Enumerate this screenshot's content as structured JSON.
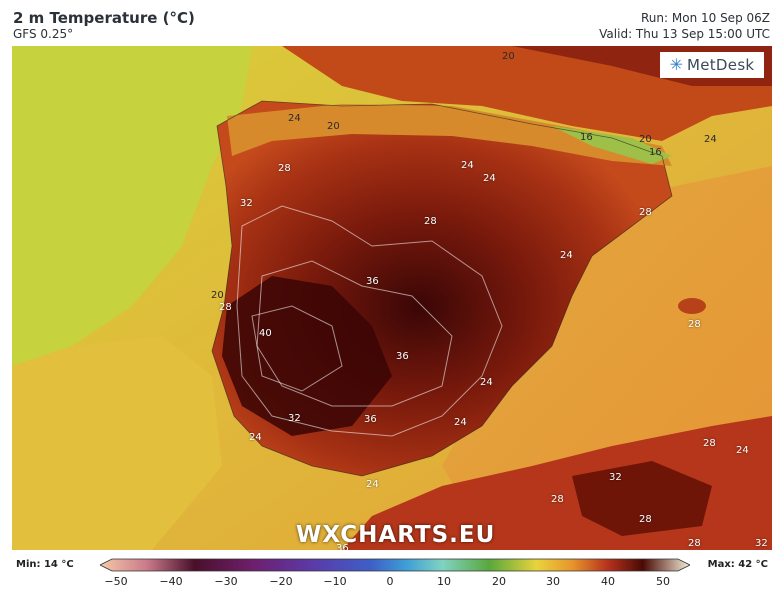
{
  "header": {
    "title": "2 m Temperature (°C)",
    "model": "GFS 0.25°",
    "run": "Run: Mon 10 Sep 06Z",
    "valid": "Valid: Thu 13 Sep 15:00 UTC"
  },
  "logo": {
    "text": "MetDesk",
    "icon": "metdesk-logo-icon"
  },
  "watermark": "WXCHARTS.EU",
  "contour_labels": [
    {
      "text": "20"
    },
    {
      "text": "24"
    },
    {
      "text": "20"
    },
    {
      "text": "16"
    },
    {
      "text": "20"
    },
    {
      "text": "16"
    },
    {
      "text": "24"
    },
    {
      "text": "28"
    },
    {
      "text": "24"
    },
    {
      "text": "24"
    },
    {
      "text": "28"
    },
    {
      "text": "32"
    },
    {
      "text": "28"
    },
    {
      "text": "24"
    },
    {
      "text": "36"
    },
    {
      "text": "20"
    },
    {
      "text": "28"
    },
    {
      "text": "40"
    },
    {
      "text": "28"
    },
    {
      "text": "36"
    },
    {
      "text": "24"
    },
    {
      "text": "32"
    },
    {
      "text": "36"
    },
    {
      "text": "24"
    },
    {
      "text": "24"
    },
    {
      "text": "28"
    },
    {
      "text": "24"
    },
    {
      "text": "32"
    },
    {
      "text": "28"
    },
    {
      "text": "24"
    },
    {
      "text": "28"
    },
    {
      "text": "28"
    },
    {
      "text": "32"
    },
    {
      "text": "36"
    }
  ],
  "scale": {
    "min_label": "Min: 14 °C",
    "max_label": "Max: 42 °C",
    "ticks": [
      "−50",
      "−40",
      "−30",
      "−20",
      "−10",
      "0",
      "10",
      "20",
      "30",
      "40",
      "50"
    ],
    "colors": [
      "#f7c8a8",
      "#4a0f2a",
      "#6e1f6e",
      "#5b3aa8",
      "#3d60c8",
      "#3f9fd6",
      "#7fd3c2",
      "#59a83c",
      "#e8d33c",
      "#e7962b",
      "#b8321c",
      "#4a0a06",
      "#f4efd8"
    ]
  }
}
